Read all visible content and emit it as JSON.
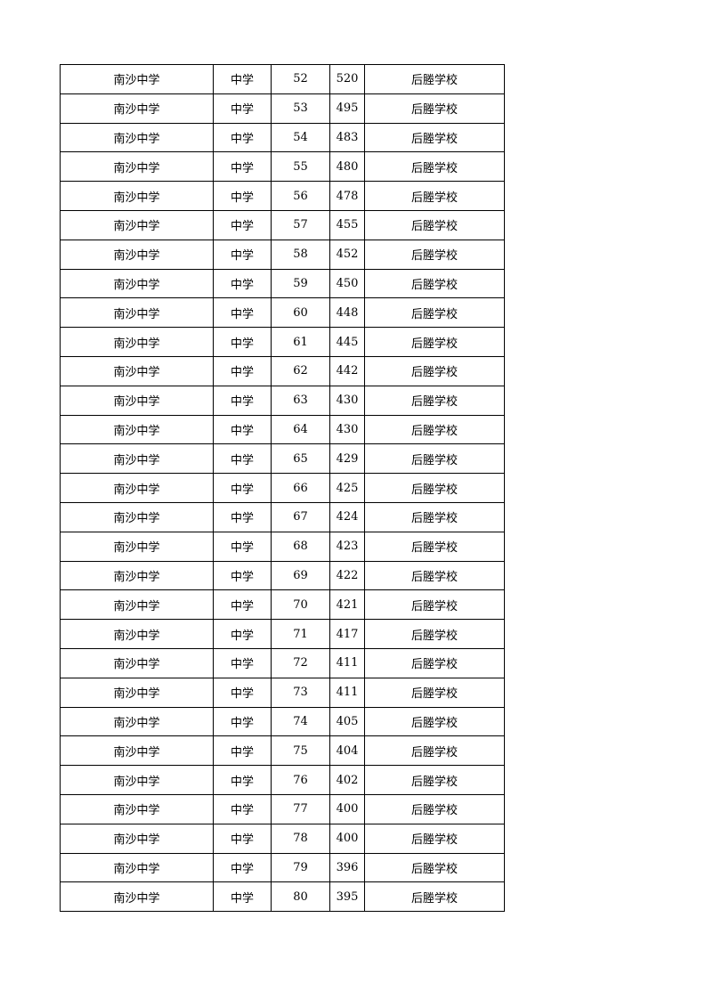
{
  "table": {
    "rows": [
      [
        "南沙中学",
        "中学",
        "52",
        "520",
        "后塍学校"
      ],
      [
        "南沙中学",
        "中学",
        "53",
        "495",
        "后塍学校"
      ],
      [
        "南沙中学",
        "中学",
        "54",
        "483",
        "后塍学校"
      ],
      [
        "南沙中学",
        "中学",
        "55",
        "480",
        "后塍学校"
      ],
      [
        "南沙中学",
        "中学",
        "56",
        "478",
        "后塍学校"
      ],
      [
        "南沙中学",
        "中学",
        "57",
        "455",
        "后塍学校"
      ],
      [
        "南沙中学",
        "中学",
        "58",
        "452",
        "后塍学校"
      ],
      [
        "南沙中学",
        "中学",
        "59",
        "450",
        "后塍学校"
      ],
      [
        "南沙中学",
        "中学",
        "60",
        "448",
        "后塍学校"
      ],
      [
        "南沙中学",
        "中学",
        "61",
        "445",
        "后塍学校"
      ],
      [
        "南沙中学",
        "中学",
        "62",
        "442",
        "后塍学校"
      ],
      [
        "南沙中学",
        "中学",
        "63",
        "430",
        "后塍学校"
      ],
      [
        "南沙中学",
        "中学",
        "64",
        "430",
        "后塍学校"
      ],
      [
        "南沙中学",
        "中学",
        "65",
        "429",
        "后塍学校"
      ],
      [
        "南沙中学",
        "中学",
        "66",
        "425",
        "后塍学校"
      ],
      [
        "南沙中学",
        "中学",
        "67",
        "424",
        "后塍学校"
      ],
      [
        "南沙中学",
        "中学",
        "68",
        "423",
        "后塍学校"
      ],
      [
        "南沙中学",
        "中学",
        "69",
        "422",
        "后塍学校"
      ],
      [
        "南沙中学",
        "中学",
        "70",
        "421",
        "后塍学校"
      ],
      [
        "南沙中学",
        "中学",
        "71",
        "417",
        "后塍学校"
      ],
      [
        "南沙中学",
        "中学",
        "72",
        "411",
        "后塍学校"
      ],
      [
        "南沙中学",
        "中学",
        "73",
        "411",
        "后塍学校"
      ],
      [
        "南沙中学",
        "中学",
        "74",
        "405",
        "后塍学校"
      ],
      [
        "南沙中学",
        "中学",
        "75",
        "404",
        "后塍学校"
      ],
      [
        "南沙中学",
        "中学",
        "76",
        "402",
        "后塍学校"
      ],
      [
        "南沙中学",
        "中学",
        "77",
        "400",
        "后塍学校"
      ],
      [
        "南沙中学",
        "中学",
        "78",
        "400",
        "后塍学校"
      ],
      [
        "南沙中学",
        "中学",
        "79",
        "396",
        "后塍学校"
      ],
      [
        "南沙中学",
        "中学",
        "80",
        "395",
        "后塍学校"
      ]
    ]
  }
}
